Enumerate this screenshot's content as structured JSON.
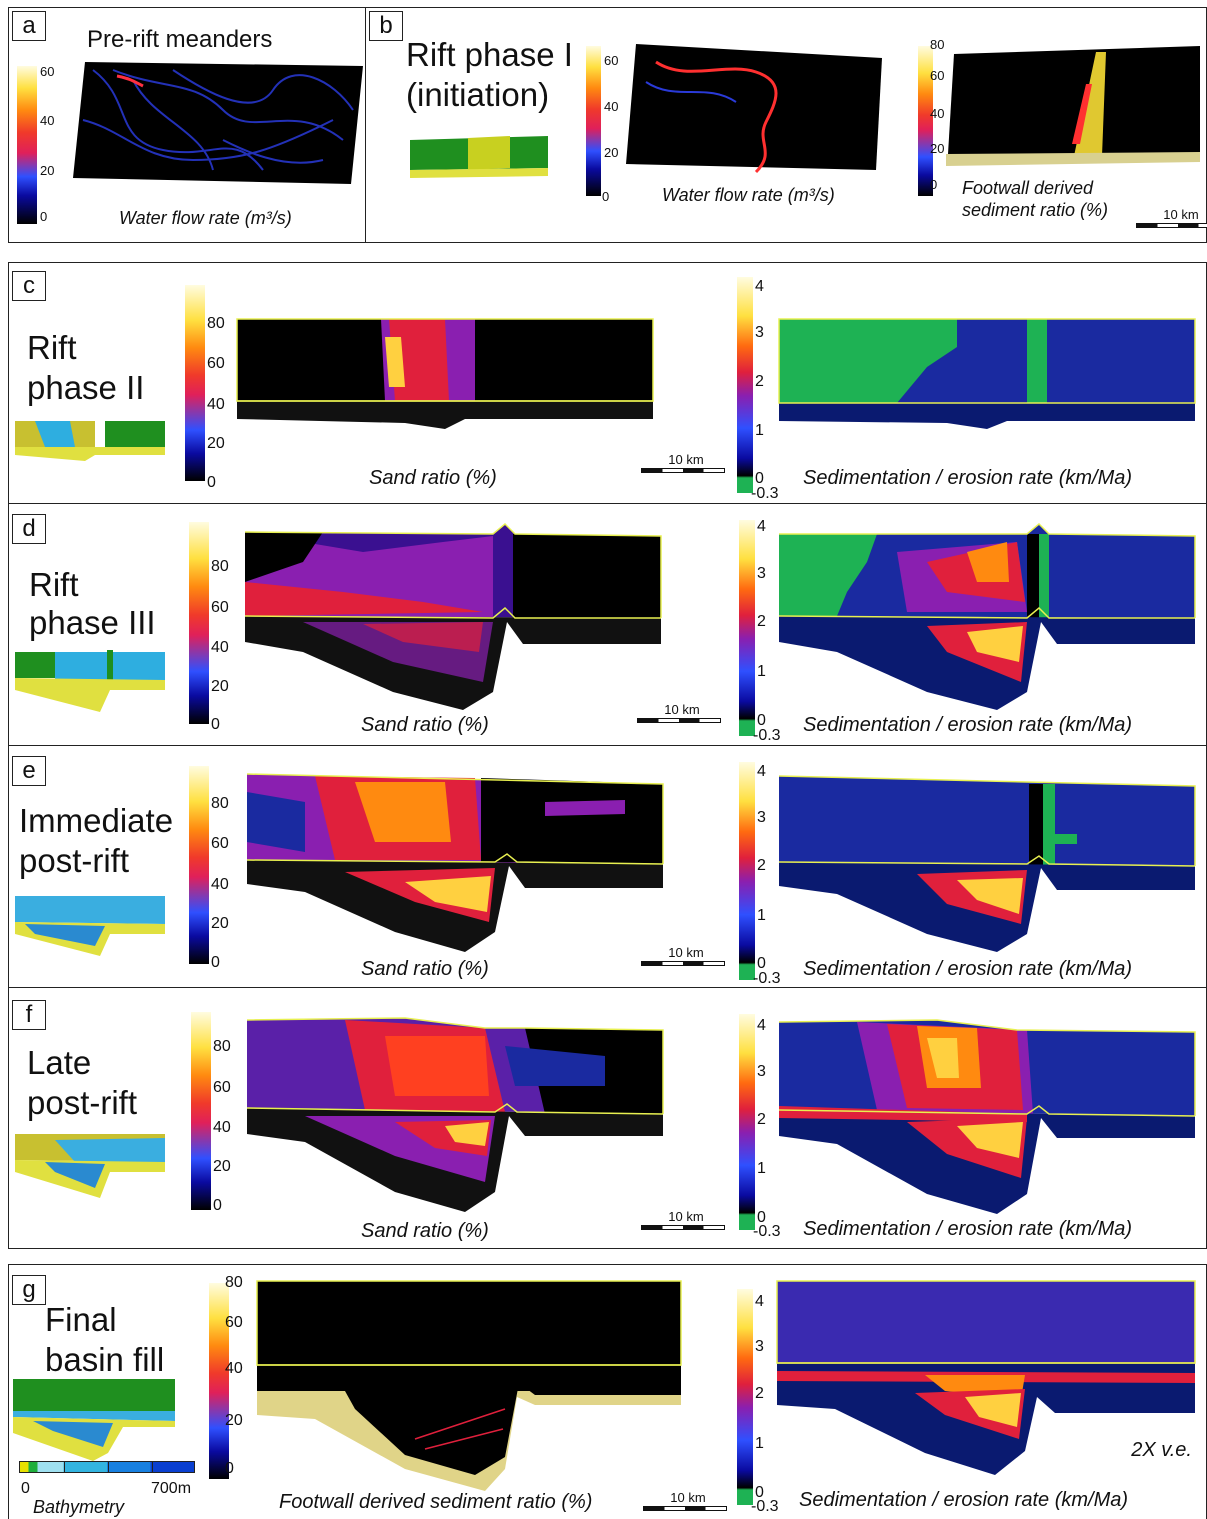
{
  "panels": {
    "a": {
      "letter": "a",
      "title": "Pre-rift meanders",
      "caption": "Water flow rate (m³/s)",
      "ticks": [
        "60",
        "40",
        "20",
        "0"
      ]
    },
    "b": {
      "letter": "b",
      "title_line1": "Rift phase I",
      "title_line2": "(initiation)",
      "flow_caption": "Water flow rate (m³/s)",
      "flow_ticks": [
        "60",
        "40",
        "20",
        "0"
      ],
      "fw_caption_line1": "Footwall derived",
      "fw_caption_line2": "sediment ratio (%)",
      "fw_ticks": [
        "80",
        "60",
        "40",
        "20",
        "0"
      ],
      "scale": "10 km"
    },
    "c": {
      "letter": "c",
      "title_line1": "Rift",
      "title_line2": "phase II"
    },
    "d": {
      "letter": "d",
      "title_line1": "Rift",
      "title_line2": "phase III"
    },
    "e": {
      "letter": "e",
      "title_line1": "Immediate",
      "title_line2": "post-rift"
    },
    "f": {
      "letter": "f",
      "title_line1": "Late",
      "title_line2": "post-rift"
    },
    "g": {
      "letter": "g",
      "title_line1": "Final",
      "title_line2": "basin fill",
      "fw_caption": "Footwall derived sediment ratio (%)",
      "fw_ticks": [
        "80",
        "60",
        "40",
        "20",
        "0"
      ],
      "bathy_min": "0",
      "bathy_max": "700m",
      "bathy_label": "Bathymetry",
      "ve": "2X v.e."
    }
  },
  "common": {
    "sand_caption": "Sand ratio (%)",
    "sand_ticks": [
      "80",
      "60",
      "40",
      "20",
      "0"
    ],
    "rate_caption": "Sedimentation / erosion rate (km/Ma)",
    "rate_ticks": [
      "4",
      "3",
      "2",
      "1",
      "0"
    ],
    "rate_min": "-0.3",
    "scale": "10 km"
  },
  "colors": {
    "frame": "#222222",
    "horizon": "#e8f050",
    "footwall": "#1eb254",
    "sand": "#e0d488"
  }
}
